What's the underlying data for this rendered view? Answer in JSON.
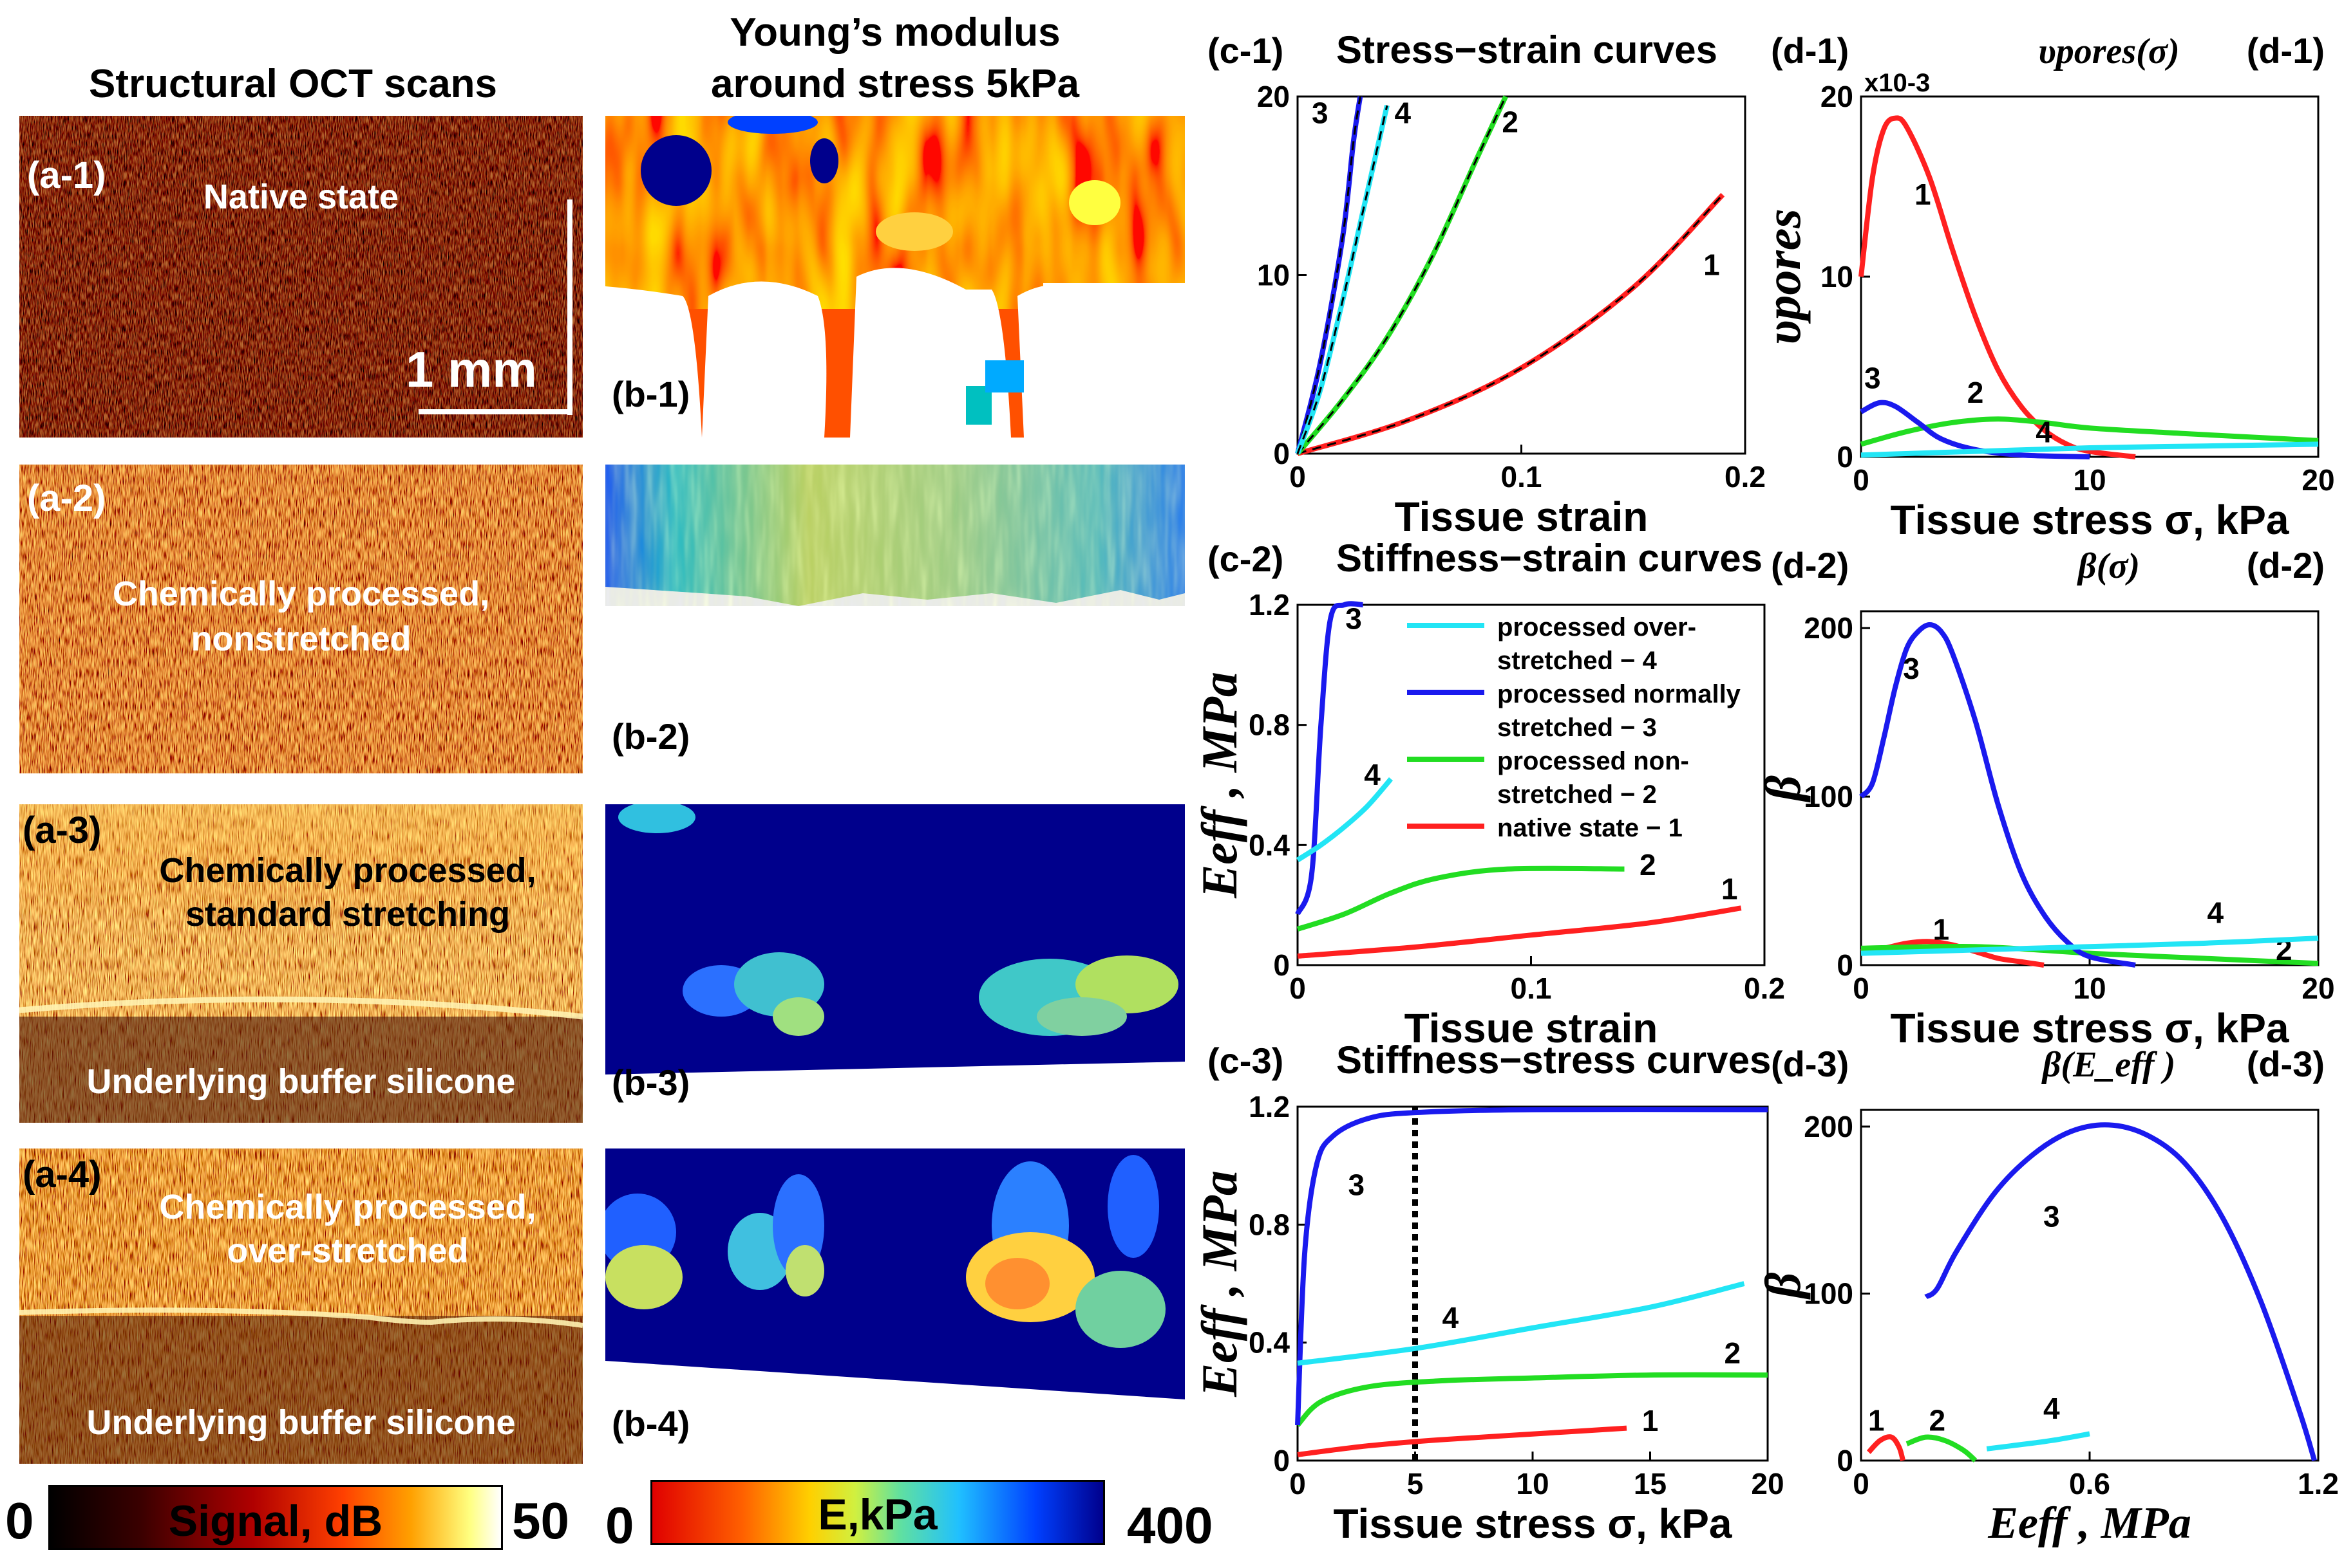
{
  "headers": {
    "col_a": "Structural OCT scans",
    "col_b_line1": "Young’s modulus",
    "col_b_line2": "around stress 5kPa"
  },
  "oct_panels": [
    {
      "id": "(a-1)",
      "text": [
        "Native state"
      ],
      "bottom_text": ""
    },
    {
      "id": "(a-2)",
      "text": [
        "Chemically processed,",
        "nonstretched"
      ],
      "bottom_text": ""
    },
    {
      "id": "(a-3)",
      "text": [
        "Chemically processed,",
        "standard stretching"
      ],
      "bottom_text": "Underlying buffer silicone"
    },
    {
      "id": "(a-4)",
      "text": [
        "Chemically processed,",
        "over-stretched"
      ],
      "bottom_text": "Underlying buffer silicone"
    }
  ],
  "scale_bar": "1 mm",
  "modulus_panels": [
    "(b-1)",
    "(b-2)",
    "(b-3)",
    "(b-4)"
  ],
  "colorbars": {
    "signal": {
      "label": "Signal, dB",
      "min": "0",
      "max": "50"
    },
    "modulus": {
      "label": "E,kPa",
      "min": "0",
      "max": "400"
    }
  },
  "colors": {
    "curve_1": "#ff2020",
    "curve_2": "#22dd22",
    "curve_3": "#1a1aee",
    "curve_4": "#22e5f5",
    "oct_dark": "#2a0000",
    "oct_bright": "#ff7a1a",
    "modulus_low": "#e60000",
    "modulus_high": "#00008c"
  },
  "chart_data": [
    {
      "id": "c-1",
      "type": "line",
      "panel_label": "(c-1)",
      "title": "Stress−strain curves",
      "xlabel": "Tissue strain",
      "ylabel": "",
      "xlim": [
        0,
        0.2
      ],
      "ylim": [
        0,
        20
      ],
      "xticks": [
        "0",
        "0.1",
        "0.2"
      ],
      "yticks": [
        "0",
        "10",
        "20"
      ],
      "series": [
        {
          "name": "1",
          "x": [
            0,
            0.05,
            0.1,
            0.15,
            0.19
          ],
          "y": [
            0,
            1.9,
            4.8,
            9.3,
            14.5
          ]
        },
        {
          "name": "2",
          "x": [
            0,
            0.02,
            0.04,
            0.06,
            0.08,
            0.093
          ],
          "y": [
            0,
            3,
            6.5,
            11,
            16.5,
            20
          ]
        },
        {
          "name": "3",
          "x": [
            0,
            0.01,
            0.02,
            0.025,
            0.028
          ],
          "y": [
            0,
            5,
            12,
            17.5,
            20
          ]
        },
        {
          "name": "4",
          "x": [
            0,
            0.01,
            0.02,
            0.03,
            0.04
          ],
          "y": [
            0,
            3.5,
            8.5,
            14,
            19.5
          ]
        }
      ]
    },
    {
      "id": "c-2",
      "type": "line",
      "panel_label": "(c-2)",
      "title": "Stiffness−strain curves",
      "xlabel": "Tissue strain",
      "ylabel": "E_eff , MPa",
      "xlim": [
        0,
        0.2
      ],
      "ylim": [
        0,
        1.2
      ],
      "xticks": [
        "0",
        "0.1",
        "0.2"
      ],
      "yticks": [
        "0",
        "0.4",
        "0.8",
        "1.2"
      ],
      "legend": [
        "processed over-",
        "stretched − 4",
        "processed normally",
        "stretched − 3",
        "processed non-",
        "stretched − 2",
        "native state − 1"
      ],
      "series": [
        {
          "name": "1",
          "x": [
            0,
            0.05,
            0.1,
            0.15,
            0.19
          ],
          "y": [
            0.03,
            0.06,
            0.1,
            0.14,
            0.19
          ]
        },
        {
          "name": "2",
          "x": [
            0,
            0.02,
            0.04,
            0.06,
            0.09,
            0.14
          ],
          "y": [
            0.12,
            0.17,
            0.24,
            0.29,
            0.32,
            0.32
          ]
        },
        {
          "name": "3",
          "x": [
            0,
            0.006,
            0.01,
            0.014,
            0.02,
            0.028
          ],
          "y": [
            0.17,
            0.3,
            0.8,
            1.15,
            1.2,
            1.2
          ]
        },
        {
          "name": "4",
          "x": [
            0,
            0.01,
            0.02,
            0.03,
            0.04
          ],
          "y": [
            0.35,
            0.4,
            0.46,
            0.53,
            0.62
          ]
        }
      ]
    },
    {
      "id": "c-3",
      "type": "line",
      "panel_label": "(c-3)",
      "title": "Stiffness−stress curves",
      "xlabel": "Tissue stress σ, kPa",
      "ylabel": "E_eff , MPa",
      "xlim": [
        0,
        20
      ],
      "ylim": [
        0,
        1.2
      ],
      "xticks": [
        "0",
        "5",
        "10",
        "15",
        "20"
      ],
      "yticks": [
        "0",
        "0.4",
        "0.8",
        "1.2"
      ],
      "vline": 5,
      "series": [
        {
          "name": "1",
          "x": [
            0,
            3,
            6,
            10,
            14
          ],
          "y": [
            0.02,
            0.05,
            0.07,
            0.09,
            0.11
          ]
        },
        {
          "name": "2",
          "x": [
            0,
            1,
            3,
            6,
            10,
            15,
            20
          ],
          "y": [
            0.12,
            0.2,
            0.25,
            0.27,
            0.28,
            0.29,
            0.29
          ]
        },
        {
          "name": "3",
          "x": [
            0,
            0.3,
            0.8,
            1.5,
            3,
            5,
            10,
            20
          ],
          "y": [
            0.12,
            0.7,
            1.0,
            1.1,
            1.16,
            1.18,
            1.19,
            1.19
          ]
        },
        {
          "name": "4",
          "x": [
            0,
            5,
            10,
            15,
            19
          ],
          "y": [
            0.33,
            0.38,
            0.45,
            0.52,
            0.6
          ]
        }
      ]
    },
    {
      "id": "d-1",
      "type": "line",
      "panel_label": "(d-1)",
      "title": "υpores(σ)",
      "xlabel": "Tissue stress σ, kPa",
      "ylabel": "υpores",
      "multiplier": "x10-3",
      "xlim": [
        0,
        20
      ],
      "ylim": [
        0,
        20
      ],
      "xticks": [
        "0",
        "10",
        "20"
      ],
      "yticks": [
        "0",
        "10",
        "20"
      ],
      "series": [
        {
          "name": "1",
          "x": [
            0,
            0.5,
            1,
            1.5,
            2,
            3,
            4,
            5,
            6,
            7,
            8,
            9,
            10,
            12
          ],
          "y": [
            10,
            15.5,
            18.2,
            18.8,
            18.3,
            15.5,
            11.5,
            7.8,
            4.8,
            2.8,
            1.5,
            0.7,
            0.3,
            0
          ]
        },
        {
          "name": "2",
          "x": [
            0,
            2,
            4,
            6,
            8,
            10,
            14,
            20
          ],
          "y": [
            0.7,
            1.4,
            1.9,
            2.1,
            1.9,
            1.6,
            1.3,
            0.9
          ]
        },
        {
          "name": "3",
          "x": [
            0,
            0.8,
            1.5,
            2.5,
            3.5,
            5,
            7,
            10
          ],
          "y": [
            2.5,
            3,
            2.8,
            1.9,
            1,
            0.4,
            0.1,
            0
          ]
        },
        {
          "name": "4",
          "x": [
            0,
            5,
            10,
            15,
            20
          ],
          "y": [
            0.1,
            0.3,
            0.5,
            0.6,
            0.7
          ]
        }
      ]
    },
    {
      "id": "d-2",
      "type": "line",
      "panel_label": "(d-2)",
      "title": "β(σ)",
      "xlabel": "Tissue stress σ, kPa",
      "ylabel": "β",
      "xlim": [
        0,
        20
      ],
      "ylim": [
        0,
        210
      ],
      "xticks": [
        "0",
        "10",
        "20"
      ],
      "yticks": [
        "0",
        "100",
        "200"
      ],
      "series": [
        {
          "name": "1",
          "x": [
            0,
            1,
            2,
            3,
            4,
            5,
            6,
            7,
            8
          ],
          "y": [
            8,
            10,
            13,
            14,
            12,
            8,
            4,
            2,
            0
          ]
        },
        {
          "name": "2",
          "x": [
            0,
            5,
            10,
            15,
            20
          ],
          "y": [
            10,
            11,
            7,
            4,
            1
          ]
        },
        {
          "name": "3",
          "x": [
            0,
            0.5,
            1,
            1.5,
            2,
            2.5,
            3,
            3.5,
            4,
            5,
            6,
            7,
            8,
            9,
            10,
            12
          ],
          "y": [
            100,
            108,
            135,
            165,
            188,
            198,
            202,
            198,
            185,
            145,
            95,
            55,
            30,
            14,
            5,
            0
          ]
        },
        {
          "name": "4",
          "x": [
            0,
            5,
            10,
            15,
            20
          ],
          "y": [
            7,
            9,
            11,
            13,
            16
          ]
        }
      ]
    },
    {
      "id": "d-3",
      "type": "line",
      "panel_label": "(d-3)",
      "title": "β(E_eff )",
      "xlabel": "E_eff , MPa",
      "ylabel": "β",
      "xlim": [
        0,
        1.2
      ],
      "ylim": [
        0,
        210
      ],
      "xticks": [
        "0",
        "0.6",
        "1.2"
      ],
      "yticks": [
        "0",
        "100",
        "200"
      ],
      "series": [
        {
          "name": "1",
          "x": [
            0.02,
            0.05,
            0.08,
            0.1,
            0.11
          ],
          "y": [
            5,
            12,
            14,
            8,
            0
          ]
        },
        {
          "name": "2",
          "x": [
            0.12,
            0.17,
            0.22,
            0.27,
            0.3
          ],
          "y": [
            10,
            14,
            12,
            6,
            0
          ]
        },
        {
          "name": "3",
          "x": [
            0.17,
            0.2,
            0.25,
            0.35,
            0.45,
            0.55,
            0.65,
            0.75,
            0.85,
            0.95,
            1.05,
            1.15,
            1.19
          ],
          "y": [
            98,
            103,
            125,
            160,
            183,
            197,
            201,
            195,
            178,
            145,
            95,
            30,
            0
          ]
        },
        {
          "name": "4",
          "x": [
            0.33,
            0.4,
            0.5,
            0.6
          ],
          "y": [
            7,
            9,
            12,
            16
          ]
        }
      ]
    }
  ]
}
